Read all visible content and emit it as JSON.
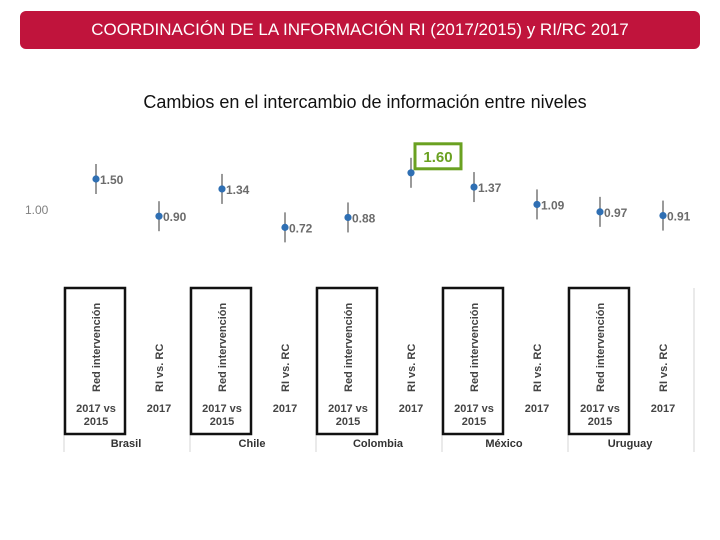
{
  "header": {
    "title": "COORDINACIÓN DE LA INFORMACIÓN RI (2017/2015) y RI/RC 2017"
  },
  "subtitle": "Cambios en el intercambio de información entre niveles",
  "colors": {
    "header_bg": "#c0143c",
    "point": "#2f6fb3",
    "highlight": "#6aa121",
    "panel_border": "#111111"
  },
  "chart_data": {
    "type": "scatter",
    "reference_line": {
      "value": 1.0,
      "label": "1.00"
    },
    "groups": [
      "Brasil",
      "Chile",
      "Colombia",
      "México",
      "Uruguay"
    ],
    "subgroups": [
      {
        "top": "Red intervención",
        "bottom": "2017 vs 2015"
      },
      {
        "top": "RI vs. RC",
        "bottom": "2017"
      }
    ],
    "points": [
      {
        "group": "Brasil",
        "subgroup": "Red intervención",
        "value": 1.5,
        "label": "1.50"
      },
      {
        "group": "Brasil",
        "subgroup": "RI vs. RC",
        "value": 0.9,
        "label": "0.90"
      },
      {
        "group": "Chile",
        "subgroup": "Red intervención",
        "value": 1.34,
        "label": "1.34"
      },
      {
        "group": "Chile",
        "subgroup": "RI vs. RC",
        "value": 0.72,
        "label": "0.72"
      },
      {
        "group": "Colombia",
        "subgroup": "Red intervención",
        "value": 0.88,
        "label": "0.88"
      },
      {
        "group": "Colombia",
        "subgroup": "RI vs. RC",
        "value": 1.6,
        "label": "1.60",
        "highlight": true
      },
      {
        "group": "México",
        "subgroup": "Red intervención",
        "value": 1.37,
        "label": "1.37"
      },
      {
        "group": "México",
        "subgroup": "RI vs. RC",
        "value": 1.09,
        "label": "1.09"
      },
      {
        "group": "Uruguay",
        "subgroup": "Red intervención",
        "value": 0.97,
        "label": "0.97"
      },
      {
        "group": "Uruguay",
        "subgroup": "RI vs. RC",
        "value": 0.91,
        "label": "0.91"
      }
    ]
  }
}
